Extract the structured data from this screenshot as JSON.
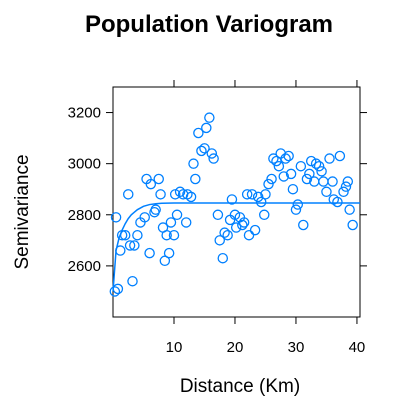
{
  "chart_data": {
    "type": "scatter",
    "title": "Population Variogram",
    "xlabel": "Distance (Km)",
    "ylabel": "Semivariance",
    "xlim": [
      0,
      40.5
    ],
    "ylim": [
      2400,
      3300
    ],
    "xticks": [
      10,
      20,
      30,
      40
    ],
    "yticks": [
      2600,
      2800,
      3000,
      3200
    ],
    "grid": false,
    "point_color": "#0080ff",
    "line_color": "#0080ff",
    "points": [
      {
        "x": 0.3,
        "y": 2500
      },
      {
        "x": 0.5,
        "y": 2790
      },
      {
        "x": 0.8,
        "y": 2510
      },
      {
        "x": 1.2,
        "y": 2660
      },
      {
        "x": 1.5,
        "y": 2720
      },
      {
        "x": 2.0,
        "y": 2720
      },
      {
        "x": 2.5,
        "y": 2880
      },
      {
        "x": 2.8,
        "y": 2680
      },
      {
        "x": 3.2,
        "y": 2540
      },
      {
        "x": 3.5,
        "y": 2680
      },
      {
        "x": 4.0,
        "y": 2720
      },
      {
        "x": 4.5,
        "y": 2770
      },
      {
        "x": 5.2,
        "y": 2790
      },
      {
        "x": 5.5,
        "y": 2940
      },
      {
        "x": 6.0,
        "y": 2650
      },
      {
        "x": 6.2,
        "y": 2920
      },
      {
        "x": 6.8,
        "y": 2810
      },
      {
        "x": 7.0,
        "y": 2820
      },
      {
        "x": 7.5,
        "y": 2940
      },
      {
        "x": 7.8,
        "y": 2880
      },
      {
        "x": 8.2,
        "y": 2750
      },
      {
        "x": 8.5,
        "y": 2620
      },
      {
        "x": 8.8,
        "y": 2720
      },
      {
        "x": 9.2,
        "y": 2650
      },
      {
        "x": 9.5,
        "y": 2770
      },
      {
        "x": 10.0,
        "y": 2720
      },
      {
        "x": 10.2,
        "y": 2880
      },
      {
        "x": 10.5,
        "y": 2800
      },
      {
        "x": 11.0,
        "y": 2890
      },
      {
        "x": 11.5,
        "y": 2880
      },
      {
        "x": 12.0,
        "y": 2770
      },
      {
        "x": 12.2,
        "y": 2880
      },
      {
        "x": 12.8,
        "y": 2870
      },
      {
        "x": 13.2,
        "y": 3000
      },
      {
        "x": 13.5,
        "y": 2940
      },
      {
        "x": 14.0,
        "y": 3120
      },
      {
        "x": 14.5,
        "y": 3050
      },
      {
        "x": 15.0,
        "y": 3060
      },
      {
        "x": 15.3,
        "y": 3140
      },
      {
        "x": 15.8,
        "y": 3180
      },
      {
        "x": 16.2,
        "y": 3040
      },
      {
        "x": 16.5,
        "y": 3020
      },
      {
        "x": 17.2,
        "y": 2800
      },
      {
        "x": 17.5,
        "y": 2700
      },
      {
        "x": 18.0,
        "y": 2630
      },
      {
        "x": 18.3,
        "y": 2730
      },
      {
        "x": 18.8,
        "y": 2720
      },
      {
        "x": 19.2,
        "y": 2780
      },
      {
        "x": 19.5,
        "y": 2860
      },
      {
        "x": 20.0,
        "y": 2800
      },
      {
        "x": 20.2,
        "y": 2750
      },
      {
        "x": 20.8,
        "y": 2790
      },
      {
        "x": 21.2,
        "y": 2760
      },
      {
        "x": 21.5,
        "y": 2770
      },
      {
        "x": 22.0,
        "y": 2880
      },
      {
        "x": 22.3,
        "y": 2720
      },
      {
        "x": 22.8,
        "y": 2880
      },
      {
        "x": 23.3,
        "y": 2740
      },
      {
        "x": 23.8,
        "y": 2870
      },
      {
        "x": 24.3,
        "y": 2850
      },
      {
        "x": 24.8,
        "y": 2800
      },
      {
        "x": 25.0,
        "y": 2880
      },
      {
        "x": 25.5,
        "y": 2920
      },
      {
        "x": 26.0,
        "y": 2940
      },
      {
        "x": 26.3,
        "y": 3020
      },
      {
        "x": 26.8,
        "y": 3010
      },
      {
        "x": 27.2,
        "y": 2990
      },
      {
        "x": 27.5,
        "y": 3040
      },
      {
        "x": 28.0,
        "y": 2950
      },
      {
        "x": 28.3,
        "y": 3020
      },
      {
        "x": 28.8,
        "y": 3030
      },
      {
        "x": 29.2,
        "y": 2960
      },
      {
        "x": 29.5,
        "y": 2900
      },
      {
        "x": 30.0,
        "y": 2820
      },
      {
        "x": 30.3,
        "y": 2840
      },
      {
        "x": 30.8,
        "y": 2990
      },
      {
        "x": 31.2,
        "y": 2760
      },
      {
        "x": 31.8,
        "y": 2940
      },
      {
        "x": 32.2,
        "y": 2960
      },
      {
        "x": 32.5,
        "y": 3010
      },
      {
        "x": 33.0,
        "y": 2930
      },
      {
        "x": 33.3,
        "y": 3000
      },
      {
        "x": 33.8,
        "y": 2990
      },
      {
        "x": 34.2,
        "y": 2970
      },
      {
        "x": 34.5,
        "y": 2930
      },
      {
        "x": 35.0,
        "y": 2890
      },
      {
        "x": 35.5,
        "y": 3020
      },
      {
        "x": 36.0,
        "y": 2930
      },
      {
        "x": 36.2,
        "y": 2860
      },
      {
        "x": 36.8,
        "y": 2850
      },
      {
        "x": 37.2,
        "y": 3030
      },
      {
        "x": 37.8,
        "y": 2890
      },
      {
        "x": 38.2,
        "y": 2910
      },
      {
        "x": 38.5,
        "y": 2930
      },
      {
        "x": 38.8,
        "y": 2820
      },
      {
        "x": 39.3,
        "y": 2760
      }
    ],
    "model_curve": {
      "x": [
        0,
        0.5,
        1,
        1.5,
        2,
        2.5,
        3,
        3.5,
        4,
        5,
        6,
        7,
        8,
        10,
        15,
        20,
        25,
        30,
        35,
        40.5
      ],
      "y": [
        2500,
        2660,
        2710,
        2740,
        2765,
        2785,
        2800,
        2810,
        2820,
        2833,
        2840,
        2843,
        2845,
        2846,
        2846,
        2846,
        2846,
        2846,
        2846,
        2846
      ]
    }
  }
}
